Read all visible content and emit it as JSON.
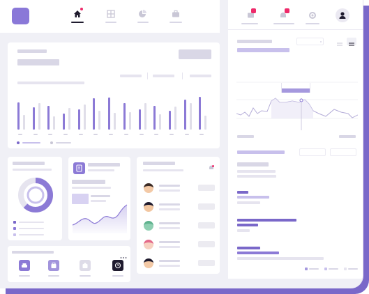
{
  "nav": {
    "tabs": [
      {
        "icon": "home-icon",
        "active": true
      },
      {
        "icon": "grid-icon",
        "active": false
      },
      {
        "icon": "pie-chart-icon",
        "active": false
      },
      {
        "icon": "briefcase-icon",
        "active": false
      }
    ]
  },
  "topbar_right": {
    "icons": [
      "messages-icon",
      "notifications-icon",
      "settings-icon",
      "user-icon"
    ],
    "badges": [
      "messages-badge",
      "notifications-badge"
    ]
  },
  "bar_chart": {
    "series": [
      {
        "color": "#8c7ad6",
        "values": [
          0.74,
          0.6,
          0.65,
          0.44,
          0.55,
          0.85,
          0.87,
          0.72,
          0.55,
          0.65,
          0.5,
          0.82,
          0.88
        ]
      },
      {
        "color": "#e0dee9",
        "values": [
          0.4,
          0.72,
          0.35,
          0.58,
          0.68,
          0.5,
          0.45,
          0.48,
          0.72,
          0.42,
          0.62,
          0.72,
          0.38
        ]
      }
    ]
  },
  "donut": {
    "filled_fraction": 0.62
  },
  "schedule": {
    "rows": 5
  },
  "quick_actions": {
    "icons": [
      "car-icon",
      "bag-icon",
      "briefcase-icon",
      "clock-icon"
    ]
  },
  "colors": {
    "accent": "#7a68c9",
    "accent_light": "#c8c0ec",
    "badge": "#ee2a6a",
    "dark": "#1f1b2e"
  }
}
